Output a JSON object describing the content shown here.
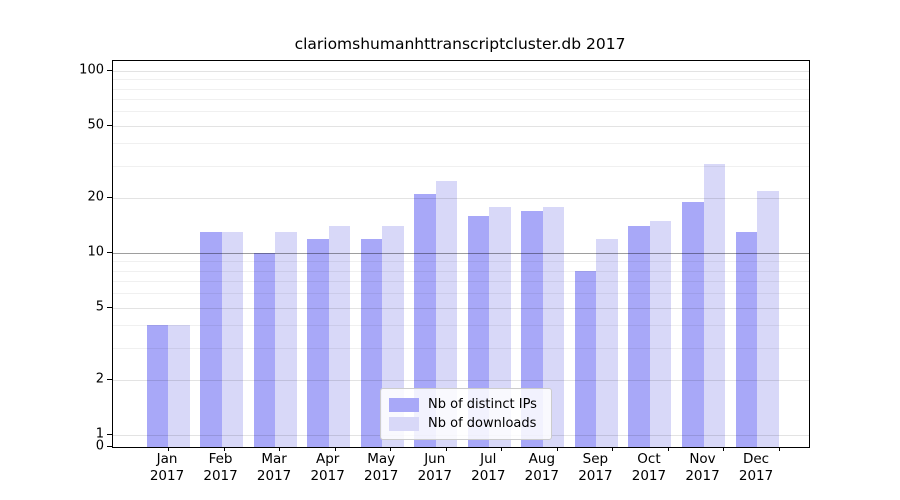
{
  "chart_data": {
    "type": "bar",
    "title": "clariomshumanhttranscriptcluster.db 2017",
    "categories": [
      "Jan 2017",
      "Feb 2017",
      "Mar 2017",
      "Apr 2017",
      "May 2017",
      "Jun 2017",
      "Jul 2017",
      "Aug 2017",
      "Sep 2017",
      "Oct 2017",
      "Nov 2017",
      "Dec 2017"
    ],
    "series": [
      {
        "name": "Nb of distinct IPs",
        "color": "#a8a8f8",
        "values": [
          4,
          13,
          10,
          12,
          12,
          21,
          16,
          17,
          8,
          14,
          19,
          13
        ]
      },
      {
        "name": "Nb of downloads",
        "color": "#d8d8f8",
        "values": [
          4,
          13,
          13,
          14,
          14,
          25,
          18,
          18,
          12,
          15,
          31,
          22
        ]
      }
    ],
    "yscale": "log",
    "yticks": [
      100,
      50,
      20,
      10,
      5,
      2,
      1,
      0
    ],
    "ylim": [
      0,
      100
    ],
    "xlabel": "",
    "ylabel": "",
    "grid": true,
    "legend_position": "bottom-center-inside",
    "background": "#ffffff"
  }
}
